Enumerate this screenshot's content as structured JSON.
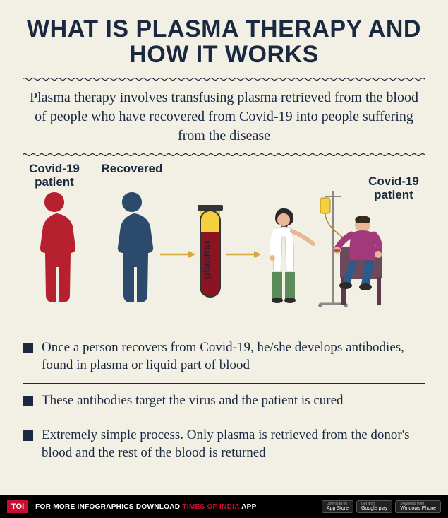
{
  "title": "WHAT IS PLASMA THERAPY AND HOW IT WORKS",
  "intro": "Plasma therapy involves transfusing plasma retrieved from the blood of people who have recovered from Covid-19 into people suffering from the disease",
  "diagram": {
    "labels": {
      "covid_patient_left": "Covid-19\npatient",
      "recovered": "Recovered",
      "plasma": "plasma",
      "covid_patient_right": "Covid-19\npatient"
    },
    "colors": {
      "covid_patient": "#b7202e",
      "recovered": "#2c4a6b",
      "plasma_tube_fill": "#8a1520",
      "plasma_tube_top": "#f4d03f",
      "arrow": "#d4a93e",
      "nurse_coat": "#ffffff",
      "nurse_pants": "#5b8c5a",
      "nurse_hair": "#2a2a2a",
      "patient_shirt": "#a03a7a",
      "patient_pants": "#2c5a8c",
      "patient_skin": "#e8b896",
      "chair": "#6b4a5a",
      "iv_stand": "#888888",
      "iv_bag": "#f4d03f"
    }
  },
  "bullets": [
    "Once a person recovers from Covid-19, he/she develops antibodies, found in plasma or liquid part of blood",
    "These antibodies target the virus and the patient is cured",
    "Extremely simple process. Only plasma is retrieved from the donor's blood and the rest of the blood is returned"
  ],
  "footer": {
    "badge": "TOI",
    "text_pre": "FOR MORE INFOGRAPHICS DOWNLOAD ",
    "text_hl": "TIMES OF INDIA",
    "text_post": " APP",
    "stores": [
      "App Store",
      "Google play",
      "Windows Phone"
    ]
  },
  "style": {
    "background": "#f2f0e4",
    "text_color": "#1a2940",
    "title_fontsize": 34,
    "intro_fontsize": 20,
    "label_fontsize": 17,
    "bullet_fontsize": 19,
    "bullet_square_color": "#1a2940"
  }
}
